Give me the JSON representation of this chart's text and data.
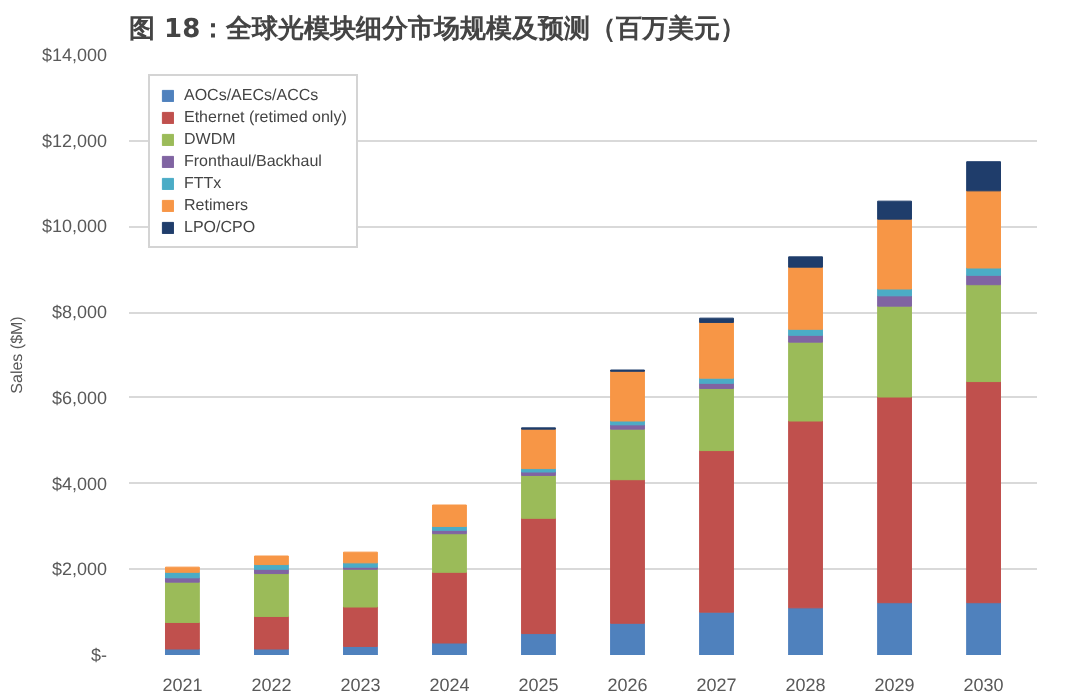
{
  "chart_data": {
    "type": "bar",
    "stacked": true,
    "title": "图 18：全球光模块细分市场规模及预测（百万美元）",
    "ylabel": "Sales ($M)",
    "categories": [
      "2021",
      "2022",
      "2023",
      "2024",
      "2025",
      "2026",
      "2027",
      "2028",
      "2029",
      "2030"
    ],
    "series": [
      {
        "name": "AOCs/AECs/ACCs",
        "color": "#4f81bd",
        "values": [
          140,
          140,
          200,
          280,
          500,
          740,
          1000,
          1100,
          1220,
          1220
        ]
      },
      {
        "name": "Ethernet (retimed only)",
        "color": "#c0504d",
        "values": [
          620,
          760,
          920,
          1650,
          2690,
          3350,
          3770,
          4360,
          4800,
          5160
        ]
      },
      {
        "name": "DWDM",
        "color": "#9bbb59",
        "values": [
          940,
          1000,
          880,
          900,
          1000,
          1180,
          1450,
          1840,
          2120,
          2260
        ]
      },
      {
        "name": "Fronthaul/Backhaul",
        "color": "#8064a2",
        "values": [
          100,
          100,
          50,
          80,
          80,
          100,
          120,
          160,
          240,
          220
        ]
      },
      {
        "name": "FTTx",
        "color": "#4bacc6",
        "values": [
          130,
          110,
          100,
          90,
          80,
          90,
          120,
          140,
          160,
          170
        ]
      },
      {
        "name": "Retimers",
        "color": "#f79646",
        "values": [
          120,
          200,
          250,
          500,
          920,
          1160,
          1300,
          1450,
          1630,
          1800
        ]
      },
      {
        "name": "LPO/CPO",
        "color": "#1f3d6b",
        "values": [
          null,
          null,
          null,
          null,
          30,
          30,
          100,
          240,
          420,
          680
        ]
      }
    ],
    "ylim": [
      0,
      14000
    ],
    "yticks": [
      {
        "value": 0,
        "label": "$-"
      },
      {
        "value": 2000,
        "label": "$2,000"
      },
      {
        "value": 4000,
        "label": "$4,000"
      },
      {
        "value": 6000,
        "label": "$6,000"
      },
      {
        "value": 8000,
        "label": "$8,000"
      },
      {
        "value": 10000,
        "label": "$10,000"
      },
      {
        "value": 12000,
        "label": "$12,000"
      },
      {
        "value": 14000,
        "label": "$14,000"
      }
    ],
    "grid": "y",
    "legend": "top left"
  }
}
